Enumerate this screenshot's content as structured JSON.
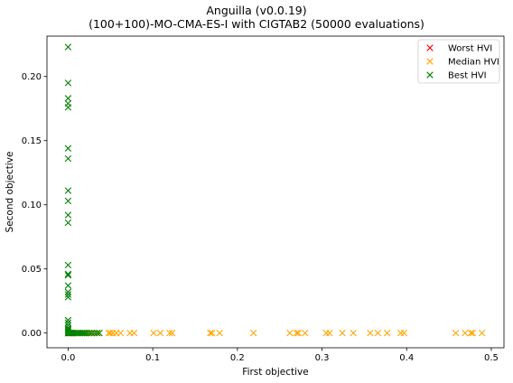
{
  "chart_data": {
    "type": "scatter",
    "title": "Anguilla (v0.0.19)",
    "subtitle": "(100+100)-MO-CMA-ES-I with CIGTAB2 (50000 evaluations)",
    "xlabel": "First objective",
    "ylabel": "Second objective",
    "xlim": [
      -0.025,
      0.515
    ],
    "ylim": [
      -0.0115,
      0.2315
    ],
    "xticks": [
      0.0,
      0.1,
      0.2,
      0.3,
      0.4,
      0.5
    ],
    "xtick_labels": [
      "0.0",
      "0.1",
      "0.2",
      "0.3",
      "0.4",
      "0.5"
    ],
    "yticks": [
      0.0,
      0.05,
      0.1,
      0.15,
      0.2
    ],
    "ytick_labels": [
      "0.00",
      "0.05",
      "0.10",
      "0.15",
      "0.20"
    ],
    "grid": false,
    "legend_position": "top-right",
    "marker": "x",
    "series": [
      {
        "name": "Worst HVI",
        "color": "#ff0000",
        "points": [
          [
            0.0,
            0.0
          ]
        ]
      },
      {
        "name": "Median HVI",
        "color": "#ffa500",
        "points": [
          [
            0.0,
            0.0
          ],
          [
            0.001,
            0.0
          ],
          [
            0.002,
            0.0
          ],
          [
            0.003,
            0.0
          ],
          [
            0.004,
            0.0
          ],
          [
            0.005,
            0.0
          ],
          [
            0.006,
            0.0
          ],
          [
            0.008,
            0.0
          ],
          [
            0.01,
            0.0
          ],
          [
            0.012,
            0.0
          ],
          [
            0.014,
            0.0
          ],
          [
            0.017,
            0.0
          ],
          [
            0.02,
            0.0
          ],
          [
            0.023,
            0.0
          ],
          [
            0.027,
            0.0
          ],
          [
            0.031,
            0.0
          ],
          [
            0.035,
            0.0
          ],
          [
            0.048,
            0.0
          ],
          [
            0.05,
            0.0
          ],
          [
            0.053,
            0.0
          ],
          [
            0.057,
            0.0
          ],
          [
            0.062,
            0.0
          ],
          [
            0.073,
            0.0
          ],
          [
            0.078,
            0.0
          ],
          [
            0.101,
            0.0
          ],
          [
            0.109,
            0.0
          ],
          [
            0.12,
            0.0
          ],
          [
            0.123,
            0.0
          ],
          [
            0.168,
            0.0
          ],
          [
            0.17,
            0.0
          ],
          [
            0.179,
            0.0
          ],
          [
            0.219,
            0.0
          ],
          [
            0.262,
            0.0
          ],
          [
            0.27,
            0.0
          ],
          [
            0.272,
            0.0
          ],
          [
            0.28,
            0.0
          ],
          [
            0.305,
            0.0
          ],
          [
            0.309,
            0.0
          ],
          [
            0.324,
            0.0
          ],
          [
            0.337,
            0.0
          ],
          [
            0.357,
            0.0
          ],
          [
            0.366,
            0.0
          ],
          [
            0.377,
            0.0
          ],
          [
            0.393,
            0.0
          ],
          [
            0.397,
            0.0
          ],
          [
            0.458,
            0.0
          ],
          [
            0.469,
            0.0
          ],
          [
            0.476,
            0.0
          ],
          [
            0.478,
            0.0
          ],
          [
            0.489,
            0.0
          ]
        ]
      },
      {
        "name": "Best HVI",
        "color": "#008000",
        "points": [
          [
            0.0,
            0.223
          ],
          [
            0.0,
            0.195
          ],
          [
            0.0,
            0.183
          ],
          [
            0.0,
            0.179
          ],
          [
            0.0,
            0.176
          ],
          [
            0.0,
            0.144
          ],
          [
            0.0,
            0.136
          ],
          [
            0.0,
            0.111
          ],
          [
            0.0,
            0.103
          ],
          [
            0.0,
            0.092
          ],
          [
            0.0,
            0.086
          ],
          [
            0.0,
            0.053
          ],
          [
            0.0,
            0.046
          ],
          [
            0.0,
            0.045
          ],
          [
            0.0,
            0.037
          ],
          [
            0.0,
            0.032
          ],
          [
            0.0,
            0.03
          ],
          [
            0.0,
            0.028
          ],
          [
            0.0,
            0.01
          ],
          [
            0.0,
            0.008
          ],
          [
            0.0,
            0.006
          ],
          [
            0.0,
            0.004
          ],
          [
            0.0,
            0.003
          ],
          [
            0.0,
            0.002
          ],
          [
            0.0,
            0.001
          ],
          [
            0.0,
            0.0
          ],
          [
            0.001,
            0.0
          ],
          [
            0.002,
            0.0
          ],
          [
            0.003,
            0.0
          ],
          [
            0.004,
            0.0
          ],
          [
            0.005,
            0.0
          ],
          [
            0.006,
            0.0
          ],
          [
            0.008,
            0.0
          ],
          [
            0.01,
            0.0
          ],
          [
            0.012,
            0.0
          ],
          [
            0.014,
            0.0
          ],
          [
            0.016,
            0.0
          ],
          [
            0.018,
            0.0
          ],
          [
            0.02,
            0.0
          ],
          [
            0.022,
            0.0
          ],
          [
            0.025,
            0.0
          ],
          [
            0.028,
            0.0
          ],
          [
            0.031,
            0.0
          ],
          [
            0.034,
            0.0
          ],
          [
            0.037,
            0.0
          ]
        ]
      }
    ]
  }
}
